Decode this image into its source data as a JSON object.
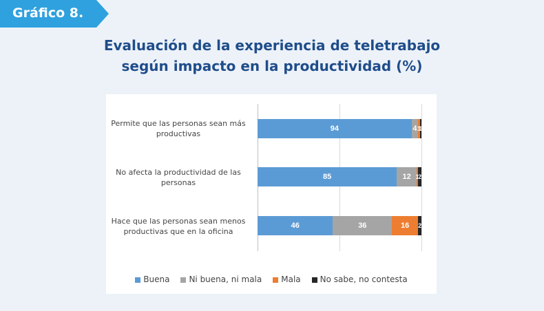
{
  "badge": "Gráfico 8.",
  "chart_title": {
    "line1": "Evaluación de la experiencia de teletrabajo",
    "line2": "según impacto en la productividad (%)"
  },
  "chart_data": {
    "type": "bar",
    "orientation": "horizontal",
    "stacked": true,
    "title": "Evaluación de la experiencia de teletrabajo según impacto en la productividad (%)",
    "xlim": [
      0,
      100
    ],
    "categories": [
      [
        "Permite que las personas sean más",
        "productivas"
      ],
      [
        "No afecta la productividad de las",
        "personas"
      ],
      [
        "Hace que las personas sean menos",
        "productivas que en la oficina"
      ]
    ],
    "series": [
      {
        "name": "Buena",
        "color": "#5b9bd5",
        "values": [
          94,
          85,
          46
        ]
      },
      {
        "name": "Ni buena, ni mala",
        "color": "#a5a5a5",
        "values": [
          4,
          12,
          36
        ]
      },
      {
        "name": "Mala",
        "color": "#ed7d31",
        "values": [
          1,
          1,
          16
        ]
      },
      {
        "name": "No sabe, no contesta",
        "color": "#262626",
        "values": [
          1,
          2,
          2
        ]
      }
    ],
    "legend_position": "bottom"
  }
}
